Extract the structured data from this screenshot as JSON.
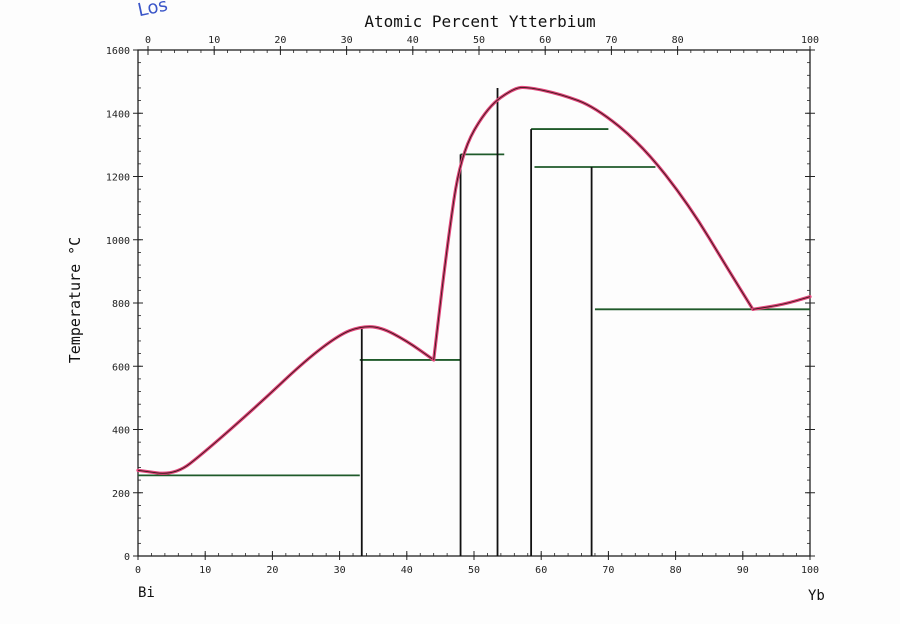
{
  "chart_data": {
    "type": "phase-diagram",
    "title": "Atomic Percent Ytterbium",
    "ylabel": "Temperature °C",
    "xlabel_left": "Bi",
    "xlabel_right": "Yb",
    "corner_scribble": "Los",
    "xlim": [
      0,
      100
    ],
    "ylim": [
      0,
      1600
    ],
    "x_ticks": [
      "0",
      "10",
      "20",
      "30",
      "40",
      "50",
      "60",
      "70",
      "80",
      "90",
      "100"
    ],
    "top_ticks": [
      "0",
      "10",
      "20",
      "30",
      "40",
      "50",
      "60",
      "70",
      "80",
      "100"
    ],
    "y_ticks": [
      "0",
      "200",
      "400",
      "600",
      "800",
      "1000",
      "1200",
      "1400",
      "1600"
    ],
    "colors": {
      "liquidus": "#e0457a",
      "eutectic_line": "#1f5a2a",
      "compound_line": "#111111",
      "frame": "#222222",
      "scribble": "#3a55c8"
    },
    "liquidus_segments": [
      [
        [
          0,
          271
        ],
        [
          5.5,
          255
        ],
        [
          10,
          330
        ],
        [
          18,
          480
        ],
        [
          25,
          620
        ],
        [
          30,
          700
        ],
        [
          33,
          725
        ],
        [
          36,
          725
        ],
        [
          40,
          680
        ],
        [
          44,
          620
        ]
      ],
      [
        [
          44,
          620
        ],
        [
          46,
          980
        ],
        [
          48,
          1270
        ],
        [
          52,
          1420
        ],
        [
          56,
          1480
        ],
        [
          58,
          1483
        ],
        [
          63,
          1460
        ],
        [
          68,
          1420
        ],
        [
          75,
          1300
        ],
        [
          82,
          1110
        ],
        [
          88,
          900
        ],
        [
          91.5,
          780
        ]
      ],
      [
        [
          91.5,
          780
        ],
        [
          96,
          795
        ],
        [
          100,
          820
        ]
      ]
    ],
    "eutectic_lines": [
      {
        "x1": 0,
        "x2": 33,
        "t": 255
      },
      {
        "x1": 33,
        "x2": 48,
        "t": 620
      },
      {
        "x1": 68,
        "x2": 100,
        "t": 780
      },
      {
        "x1": 48,
        "x2": 54.5,
        "t": 1270
      },
      {
        "x1": 58.5,
        "x2": 70,
        "t": 1350
      },
      {
        "x1": 59,
        "x2": 77,
        "t": 1230
      }
    ],
    "compound_lines": [
      {
        "x": 33.3,
        "t_top": 725
      },
      {
        "x": 48,
        "t_top": 1270
      },
      {
        "x": 53.5,
        "t_top": 1480
      },
      {
        "x": 58.5,
        "t_top": 1350
      },
      {
        "x": 67.5,
        "t_top": 1230
      }
    ]
  }
}
